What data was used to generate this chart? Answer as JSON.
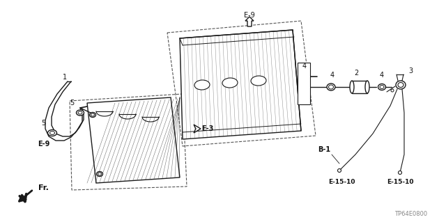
{
  "bg_color": "#ffffff",
  "fig_width": 6.4,
  "fig_height": 3.19,
  "dpi": 100,
  "lc": "#1a1a1a",
  "dc": "#555555",
  "tc": "#111111",
  "labels": {
    "E9_top": "E-9",
    "E3": "E-3",
    "E9_left": "E-9",
    "B1": "B-1",
    "E1510_left": "E-15-10",
    "E1510_right": "E-15-10",
    "FR": "Fr.",
    "TP": "TP64E0800",
    "n1": "1",
    "n2": "2",
    "n3": "3",
    "n4a": "4",
    "n4b": "4",
    "n5a": "5",
    "n5b": "5"
  }
}
